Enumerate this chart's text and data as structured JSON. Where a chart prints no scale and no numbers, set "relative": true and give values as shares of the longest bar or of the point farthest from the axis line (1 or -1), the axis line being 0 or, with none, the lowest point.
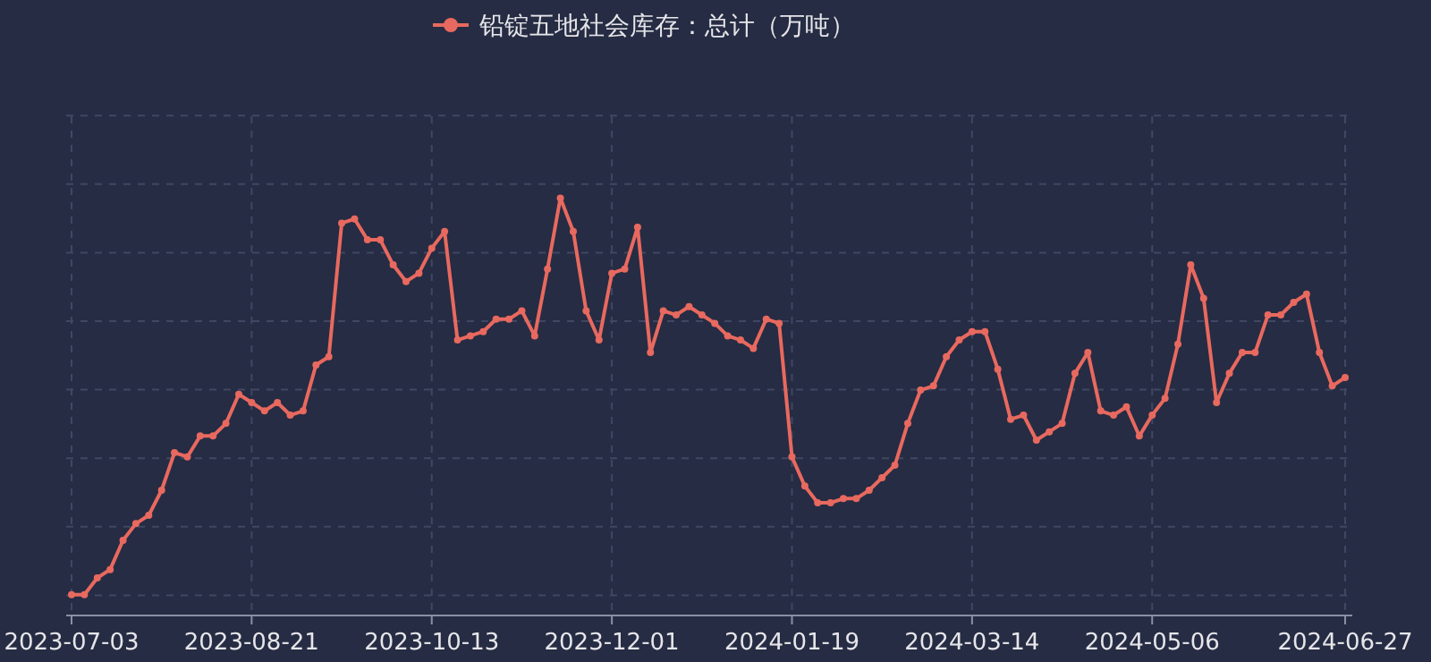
{
  "chart_data": {
    "type": "line",
    "relative": true,
    "grid": true,
    "legend": "top",
    "marker": "circle",
    "line_style": "solid",
    "categories": [
      "2023-07-03",
      null,
      null,
      null,
      null,
      null,
      null,
      null,
      null,
      null,
      null,
      null,
      null,
      null,
      "2023-08-21",
      null,
      null,
      null,
      null,
      null,
      null,
      null,
      null,
      null,
      null,
      null,
      null,
      null,
      "2023-10-13",
      null,
      null,
      null,
      null,
      null,
      null,
      null,
      null,
      null,
      null,
      null,
      null,
      null,
      "2023-12-01",
      null,
      null,
      null,
      null,
      null,
      null,
      null,
      null,
      null,
      null,
      null,
      null,
      null,
      "2024-01-19",
      null,
      null,
      null,
      null,
      null,
      null,
      null,
      null,
      null,
      null,
      null,
      null,
      null,
      "2024-03-14",
      null,
      null,
      null,
      null,
      null,
      null,
      null,
      null,
      null,
      null,
      null,
      null,
      null,
      "2024-05-06",
      null,
      null,
      null,
      null,
      null,
      null,
      null,
      null,
      null,
      null,
      null,
      null,
      null,
      null,
      "2024-06-27"
    ],
    "series": [
      {
        "name": "铅锭五地社会库存：总计（万吨）",
        "color": "#e8695f",
        "values": [
          0.05,
          0.05,
          0.09,
          0.11,
          0.18,
          0.22,
          0.24,
          0.3,
          0.39,
          0.38,
          0.43,
          0.43,
          0.46,
          0.53,
          0.51,
          0.49,
          0.51,
          0.48,
          0.49,
          0.6,
          0.62,
          0.94,
          0.95,
          0.9,
          0.9,
          0.84,
          0.8,
          0.82,
          0.88,
          0.92,
          0.66,
          0.67,
          0.68,
          0.71,
          0.71,
          0.73,
          0.67,
          0.83,
          1,
          0.92,
          0.73,
          0.66,
          0.82,
          0.83,
          0.93,
          0.63,
          0.73,
          0.72,
          0.74,
          0.72,
          0.7,
          0.67,
          0.66,
          0.64,
          0.71,
          0.7,
          0.38,
          0.31,
          0.27,
          0.27,
          0.28,
          0.28,
          0.3,
          0.33,
          0.36,
          0.46,
          0.54,
          0.55,
          0.62,
          0.66,
          0.68,
          0.68,
          0.59,
          0.47,
          0.48,
          0.42,
          0.44,
          0.46,
          0.58,
          0.63,
          0.49,
          0.48,
          0.5,
          0.43,
          0.48,
          0.52,
          0.65,
          0.84,
          0.76,
          0.51,
          0.58,
          0.63,
          0.63,
          0.72,
          0.72,
          0.75,
          0.77,
          0.63,
          0.55,
          0.57
        ]
      }
    ]
  }
}
